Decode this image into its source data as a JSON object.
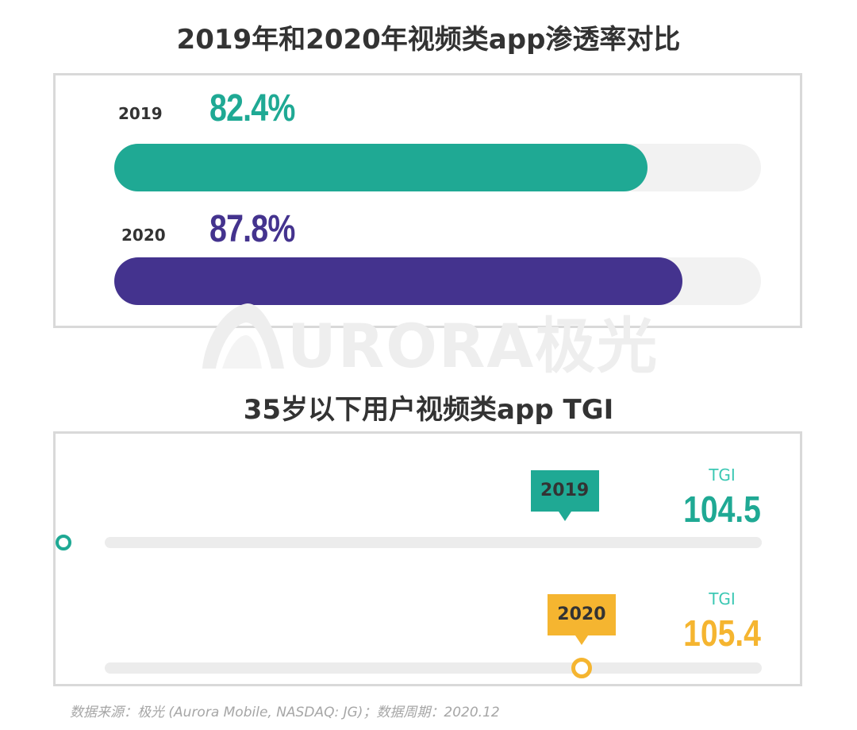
{
  "colors": {
    "teal": "#1fa994",
    "purple": "#44338e",
    "gold": "#f5b530",
    "tgi_caption": "#3cc8b4"
  },
  "penetration": {
    "title": "2019年和2020年视频类app渗透率对比",
    "rows": [
      {
        "year": "2019",
        "value_label": "82.4%",
        "value": 82.4,
        "color": "#1fa994"
      },
      {
        "year": "2020",
        "value_label": "87.8%",
        "value": 87.8,
        "color": "#44338e"
      }
    ]
  },
  "tgi": {
    "title": "35岁以下用户视频类app TGI",
    "rows": [
      {
        "year": "2019",
        "caption": "TGI",
        "value_label": "104.5",
        "value": 104.5,
        "color": "#1fa994"
      },
      {
        "year": "2020",
        "caption": "TGI",
        "value_label": "105.4",
        "value": 105.4,
        "color": "#f5b530"
      }
    ]
  },
  "chart_data": [
    {
      "type": "bar",
      "title": "2019年和2020年视频类app渗透率对比",
      "categories": [
        "2019",
        "2020"
      ],
      "values": [
        82.4,
        87.8
      ],
      "unit": "%",
      "ylim": [
        0,
        100
      ]
    },
    {
      "type": "scatter",
      "title": "35岁以下用户视频类app TGI",
      "categories": [
        "2019",
        "2020"
      ],
      "values": [
        104.5,
        105.4
      ],
      "xlabel": "TGI"
    }
  ],
  "watermark": {
    "text": "URORA极光"
  },
  "source": "数据来源：极光 (Aurora Mobile, NASDAQ: JG)；数据周期：2020.12"
}
